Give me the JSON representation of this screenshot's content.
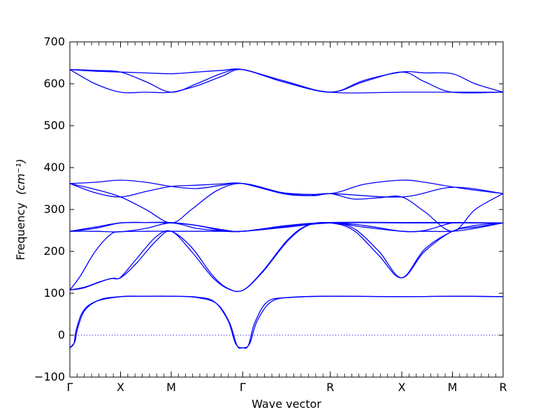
{
  "chart_data": {
    "type": "line",
    "title": "",
    "xlabel": "Wave vector",
    "ylabel": "Frequency",
    "ylabel_unit_latex": "(cm⁻¹)",
    "ylim": [
      -100,
      700
    ],
    "yticks": [
      -100,
      0,
      100,
      200,
      300,
      400,
      500,
      600,
      700
    ],
    "zero_line": true,
    "line_color": "#0000ff",
    "k_points": [
      {
        "label": "Γ",
        "x": 0.0
      },
      {
        "label": "X",
        "x": 1.0
      },
      {
        "label": "M",
        "x": 2.0
      },
      {
        "label": "Γ",
        "x": 3.41
      },
      {
        "label": "R",
        "x": 5.14
      },
      {
        "label": "X",
        "x": 6.55
      },
      {
        "label": "M",
        "x": 7.55
      },
      {
        "label": "R",
        "x": 8.55
      }
    ],
    "xlim": [
      0,
      8.55
    ],
    "series": [
      {
        "values": [
          [
            0,
            -30
          ],
          [
            0.08,
            -20
          ],
          [
            0.12,
            10
          ],
          [
            0.25,
            55
          ],
          [
            0.5,
            80
          ],
          [
            1,
            92
          ],
          [
            1.5,
            93
          ],
          [
            2,
            93
          ],
          [
            2.5,
            90
          ],
          [
            2.9,
            75
          ],
          [
            3.15,
            30
          ],
          [
            3.3,
            -25
          ],
          [
            3.41,
            -30
          ],
          [
            3.52,
            -25
          ],
          [
            3.65,
            30
          ],
          [
            3.9,
            80
          ],
          [
            4.3,
            90
          ],
          [
            5.14,
            93
          ],
          [
            6.55,
            92
          ],
          [
            7.55,
            93
          ],
          [
            8.55,
            92
          ]
        ]
      },
      {
        "values": [
          [
            0,
            -30
          ],
          [
            0.1,
            -15
          ],
          [
            0.15,
            15
          ],
          [
            0.3,
            60
          ],
          [
            0.6,
            85
          ],
          [
            1,
            92
          ],
          [
            1.5,
            93
          ],
          [
            2,
            93
          ],
          [
            2.5,
            91
          ],
          [
            2.85,
            80
          ],
          [
            3.12,
            35
          ],
          [
            3.27,
            -20
          ],
          [
            3.41,
            -30
          ],
          [
            3.55,
            -20
          ],
          [
            3.7,
            35
          ],
          [
            4,
            82
          ],
          [
            4.5,
            91
          ],
          [
            5.14,
            93
          ],
          [
            6.55,
            92
          ],
          [
            7.55,
            93
          ],
          [
            8.55,
            92
          ]
        ]
      },
      {
        "values": [
          [
            0,
            108
          ],
          [
            0.25,
            112
          ],
          [
            0.55,
            125
          ],
          [
            0.8,
            135
          ],
          [
            1,
            137
          ],
          [
            1.3,
            170
          ],
          [
            1.7,
            225
          ],
          [
            2,
            248
          ],
          [
            2.4,
            200
          ],
          [
            2.8,
            140
          ],
          [
            3.1,
            112
          ],
          [
            3.41,
            107
          ],
          [
            3.8,
            150
          ],
          [
            4.3,
            225
          ],
          [
            4.7,
            262
          ],
          [
            5.14,
            268
          ],
          [
            5.6,
            255
          ],
          [
            6.1,
            200
          ],
          [
            6.55,
            137
          ],
          [
            7.0,
            200
          ],
          [
            7.55,
            248
          ],
          [
            8.0,
            258
          ],
          [
            8.55,
            268
          ]
        ]
      },
      {
        "values": [
          [
            0,
            108
          ],
          [
            0.3,
            115
          ],
          [
            0.6,
            128
          ],
          [
            0.85,
            136
          ],
          [
            1,
            138
          ],
          [
            1.3,
            180
          ],
          [
            1.7,
            235
          ],
          [
            2,
            248
          ],
          [
            2.4,
            210
          ],
          [
            2.8,
            145
          ],
          [
            3.1,
            113
          ],
          [
            3.41,
            107
          ],
          [
            3.8,
            152
          ],
          [
            4.3,
            228
          ],
          [
            4.7,
            263
          ],
          [
            5.14,
            268
          ],
          [
            5.6,
            250
          ],
          [
            6.1,
            190
          ],
          [
            6.55,
            137
          ],
          [
            7.0,
            205
          ],
          [
            7.55,
            248
          ],
          [
            8.0,
            262
          ],
          [
            8.55,
            268
          ]
        ]
      },
      {
        "values": [
          [
            0,
            108
          ],
          [
            0.2,
            140
          ],
          [
            0.5,
            200
          ],
          [
            0.8,
            240
          ],
          [
            1,
            247
          ],
          [
            1.5,
            248
          ],
          [
            2,
            248
          ],
          [
            2.5,
            248
          ],
          [
            3,
            248
          ],
          [
            3.41,
            248
          ],
          [
            4.3,
            260
          ],
          [
            5.14,
            268
          ],
          [
            5.8,
            258
          ],
          [
            6.55,
            248
          ],
          [
            7.0,
            248
          ],
          [
            7.55,
            248
          ],
          [
            8.0,
            255
          ],
          [
            8.55,
            268
          ]
        ]
      },
      {
        "values": [
          [
            0,
            248
          ],
          [
            0.5,
            248
          ],
          [
            1,
            247
          ],
          [
            1.5,
            255
          ],
          [
            2,
            268
          ],
          [
            2.5,
            255
          ],
          [
            3,
            249
          ],
          [
            3.41,
            248
          ],
          [
            4.3,
            258
          ],
          [
            5.14,
            268
          ],
          [
            6.55,
            268
          ],
          [
            7.55,
            268
          ],
          [
            8.55,
            268
          ]
        ]
      },
      {
        "values": [
          [
            0,
            248
          ],
          [
            0.5,
            255
          ],
          [
            1,
            268
          ],
          [
            1.5,
            269
          ],
          [
            2,
            268
          ],
          [
            2.5,
            262
          ],
          [
            3,
            250
          ],
          [
            3.41,
            248
          ],
          [
            4.3,
            260
          ],
          [
            5.14,
            268
          ],
          [
            5.8,
            262
          ],
          [
            6.55,
            248
          ],
          [
            7.0,
            250
          ],
          [
            7.55,
            268
          ],
          [
            8.0,
            268
          ],
          [
            8.55,
            268
          ]
        ]
      },
      {
        "values": [
          [
            0,
            248
          ],
          [
            0.5,
            258
          ],
          [
            1,
            268
          ],
          [
            1.5,
            269
          ],
          [
            2,
            269
          ],
          [
            2.5,
            262
          ],
          [
            3,
            252
          ],
          [
            3.41,
            248
          ],
          [
            4.3,
            262
          ],
          [
            5.14,
            269
          ],
          [
            6.55,
            269
          ],
          [
            7.55,
            269
          ],
          [
            8.55,
            268
          ]
        ]
      },
      {
        "values": [
          [
            0,
            362
          ],
          [
            0.5,
            348
          ],
          [
            1,
            330
          ],
          [
            1.5,
            300
          ],
          [
            2,
            268
          ],
          [
            2.4,
            300
          ],
          [
            2.9,
            345
          ],
          [
            3.41,
            362
          ],
          [
            4.2,
            340
          ],
          [
            4.8,
            333
          ],
          [
            5.14,
            338
          ],
          [
            5.6,
            325
          ],
          [
            6.1,
            328
          ],
          [
            6.55,
            330
          ],
          [
            7.0,
            295
          ],
          [
            7.55,
            248
          ],
          [
            8.0,
            300
          ],
          [
            8.55,
            338
          ]
        ]
      },
      {
        "values": [
          [
            0,
            362
          ],
          [
            0.5,
            340
          ],
          [
            1,
            330
          ],
          [
            1.5,
            343
          ],
          [
            2,
            355
          ],
          [
            2.5,
            358
          ],
          [
            3,
            361
          ],
          [
            3.41,
            362
          ],
          [
            4.2,
            338
          ],
          [
            4.7,
            333
          ],
          [
            5.14,
            338
          ],
          [
            6.55,
            330
          ],
          [
            7.55,
            353
          ],
          [
            8.55,
            338
          ]
        ]
      },
      {
        "values": [
          [
            0,
            362
          ],
          [
            0.5,
            365
          ],
          [
            1,
            370
          ],
          [
            1.5,
            365
          ],
          [
            2,
            355
          ],
          [
            2.5,
            350
          ],
          [
            3,
            358
          ],
          [
            3.41,
            362
          ],
          [
            4.2,
            340
          ],
          [
            5.14,
            338
          ],
          [
            5.8,
            360
          ],
          [
            6.55,
            370
          ],
          [
            7.0,
            365
          ],
          [
            7.55,
            354
          ],
          [
            8.0,
            346
          ],
          [
            8.55,
            338
          ]
        ]
      },
      {
        "values": [
          [
            0,
            634
          ],
          [
            0.5,
            632
          ],
          [
            1,
            628
          ],
          [
            1.5,
            605
          ],
          [
            2,
            580
          ],
          [
            2.5,
            600
          ],
          [
            3,
            625
          ],
          [
            3.41,
            634
          ],
          [
            4.2,
            605
          ],
          [
            5.14,
            580
          ],
          [
            5.8,
            605
          ],
          [
            6.55,
            628
          ],
          [
            7.0,
            605
          ],
          [
            7.55,
            580
          ],
          [
            8.55,
            580
          ]
        ]
      },
      {
        "values": [
          [
            0,
            634
          ],
          [
            0.5,
            630
          ],
          [
            1,
            628
          ],
          [
            1.5,
            626
          ],
          [
            2,
            624
          ],
          [
            2.5,
            628
          ],
          [
            3,
            632
          ],
          [
            3.41,
            634
          ],
          [
            4.2,
            608
          ],
          [
            5.14,
            580
          ],
          [
            5.8,
            608
          ],
          [
            6.55,
            628
          ],
          [
            7.0,
            626
          ],
          [
            7.55,
            624
          ],
          [
            8.0,
            600
          ],
          [
            8.55,
            580
          ]
        ]
      },
      {
        "values": [
          [
            0,
            634
          ],
          [
            0.5,
            600
          ],
          [
            1,
            580
          ],
          [
            1.5,
            580
          ],
          [
            2,
            580
          ],
          [
            2.5,
            595
          ],
          [
            3,
            618
          ],
          [
            3.41,
            634
          ],
          [
            4.2,
            605
          ],
          [
            5.14,
            580
          ],
          [
            6.55,
            580
          ],
          [
            7.55,
            580
          ],
          [
            8.55,
            580
          ]
        ]
      }
    ]
  }
}
